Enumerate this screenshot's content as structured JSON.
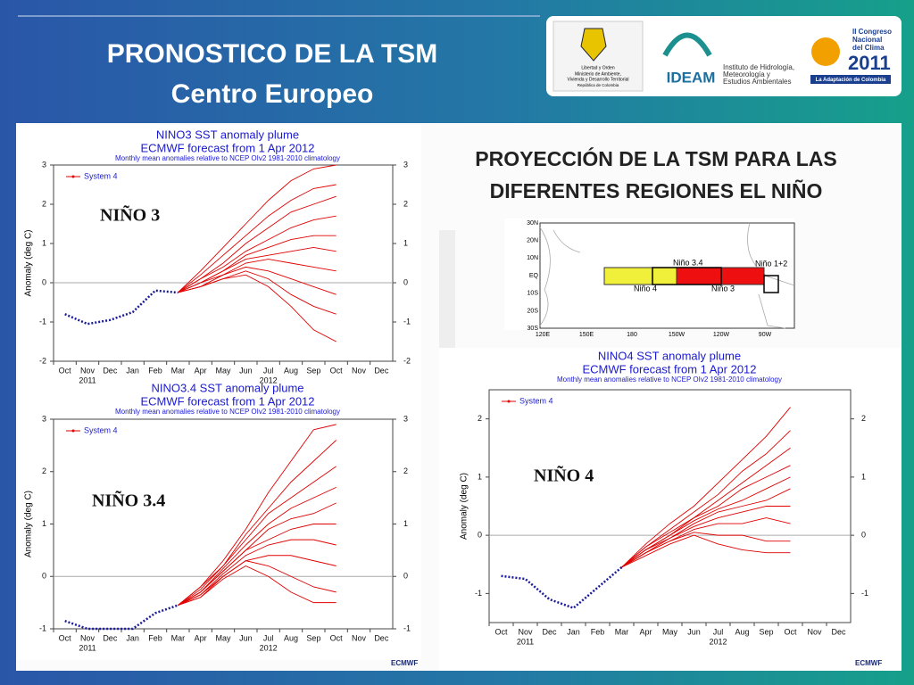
{
  "header": {
    "title": "PRONOSTICO DE LA TSM",
    "subtitle": "Centro Europeo"
  },
  "logos": {
    "motto": "Libertad y Orden",
    "ministry": [
      "Ministerio de Ambiente,",
      "Vivienda y Desarrollo Territorial"
    ],
    "country": "República de Colombia",
    "ideam": "IDEAM",
    "institute": [
      "Instituto de Hidrología,",
      "Meteorología y",
      "Estudios Ambientales"
    ],
    "congress": [
      "II Congreso",
      "Nacional",
      "del Clima",
      "2011"
    ],
    "congress_tag": "La Adaptación de Colombia",
    "ecmwf": "ECMWF"
  },
  "projection": {
    "lines": [
      "PROYECCIÓN DE LA TSM PARA LAS",
      "DIFERENTES REGIONES EL NIÑO"
    ]
  },
  "map": {
    "lat_labels": [
      "30N",
      "20N",
      "10N",
      "EQ",
      "10S",
      "20S",
      "30S"
    ],
    "lon_labels": [
      "120E",
      "150E",
      "180",
      "150W",
      "120W",
      "90W"
    ],
    "regions": [
      "Niño 3.4",
      "Niño 4",
      "Niño 3",
      "Niño 1+2"
    ]
  },
  "chart_data": [
    {
      "type": "line",
      "title": "NINO3 SST anomaly plume",
      "subtitle": "ECMWF forecast from 1 Apr 2012",
      "note": "Monthly mean anomalies relative to NCEP OIv2 1981-2010 climatology",
      "ylabel": "Anomaly (deg C)",
      "region_label": "NIÑO 3",
      "categories": [
        "Oct",
        "Nov",
        "Dec",
        "Jan",
        "Feb",
        "Mar",
        "Apr",
        "May",
        "Jun",
        "Jul",
        "Aug",
        "Sep",
        "Oct",
        "Nov",
        "Dec"
      ],
      "year_labels": [
        "2011",
        "2012"
      ],
      "ylim": [
        -2,
        3
      ],
      "yticks": [
        -2,
        -1,
        0,
        1,
        2,
        3
      ],
      "observed": {
        "color": "#1a1a9a",
        "values": [
          -0.8,
          -1.05,
          -0.95,
          -0.75,
          -0.2,
          -0.25,
          null,
          null,
          null,
          null,
          null,
          null,
          null,
          null,
          null
        ]
      },
      "forecast": {
        "name": "System 4",
        "color": "#e00000",
        "members": [
          [
            null,
            null,
            null,
            null,
            null,
            -0.25,
            0.3,
            0.9,
            1.5,
            2.1,
            2.6,
            2.9,
            3.0,
            null,
            null
          ],
          [
            null,
            null,
            null,
            null,
            null,
            -0.25,
            0.2,
            0.7,
            1.2,
            1.7,
            2.1,
            2.4,
            2.5,
            null,
            null
          ],
          [
            null,
            null,
            null,
            null,
            null,
            -0.25,
            0.1,
            0.5,
            1.0,
            1.4,
            1.8,
            2.0,
            2.2,
            null,
            null
          ],
          [
            null,
            null,
            null,
            null,
            null,
            -0.25,
            0.1,
            0.4,
            0.8,
            1.1,
            1.4,
            1.6,
            1.7,
            null,
            null
          ],
          [
            null,
            null,
            null,
            null,
            null,
            -0.25,
            0.0,
            0.3,
            0.7,
            0.9,
            1.1,
            1.2,
            1.2,
            null,
            null
          ],
          [
            null,
            null,
            null,
            null,
            null,
            -0.25,
            0.0,
            0.3,
            0.6,
            0.7,
            0.8,
            0.9,
            0.8,
            null,
            null
          ],
          [
            null,
            null,
            null,
            null,
            null,
            -0.25,
            -0.1,
            0.2,
            0.5,
            0.6,
            0.5,
            0.4,
            0.3,
            null,
            null
          ],
          [
            null,
            null,
            null,
            null,
            null,
            -0.25,
            0.0,
            0.2,
            0.4,
            0.3,
            0.1,
            -0.1,
            -0.3,
            null,
            null
          ],
          [
            null,
            null,
            null,
            null,
            null,
            -0.25,
            -0.1,
            0.1,
            0.3,
            0.1,
            -0.3,
            -0.6,
            -0.8,
            null,
            null
          ],
          [
            null,
            null,
            null,
            null,
            null,
            -0.25,
            -0.1,
            0.1,
            0.2,
            -0.1,
            -0.6,
            -1.2,
            -1.5,
            null,
            null
          ]
        ]
      }
    },
    {
      "type": "line",
      "title": "NINO3.4 SST anomaly plume",
      "subtitle": "ECMWF forecast from 1 Apr 2012",
      "note": "Monthly mean anomalies relative to NCEP OIv2 1981-2010 climatology",
      "ylabel": "Anomaly (deg C)",
      "region_label": "NIÑO 3.4",
      "categories": [
        "Oct",
        "Nov",
        "Dec",
        "Jan",
        "Feb",
        "Mar",
        "Apr",
        "May",
        "Jun",
        "Jul",
        "Aug",
        "Sep",
        "Oct",
        "Nov",
        "Dec"
      ],
      "year_labels": [
        "2011",
        "2012"
      ],
      "ylim": [
        -1,
        3
      ],
      "yticks": [
        -1,
        0,
        1,
        2,
        3
      ],
      "observed": {
        "color": "#1a1a9a",
        "values": [
          -0.85,
          -1.0,
          -1.0,
          -1.0,
          -0.7,
          -0.55,
          null,
          null,
          null,
          null,
          null,
          null,
          null,
          null,
          null
        ]
      },
      "forecast": {
        "name": "System 4",
        "color": "#e00000",
        "members": [
          [
            null,
            null,
            null,
            null,
            null,
            -0.55,
            -0.2,
            0.3,
            0.9,
            1.6,
            2.2,
            2.8,
            2.9,
            null,
            null
          ],
          [
            null,
            null,
            null,
            null,
            null,
            -0.55,
            -0.2,
            0.2,
            0.8,
            1.3,
            1.8,
            2.2,
            2.6,
            null,
            null
          ],
          [
            null,
            null,
            null,
            null,
            null,
            -0.55,
            -0.25,
            0.2,
            0.7,
            1.2,
            1.5,
            1.8,
            2.1,
            null,
            null
          ],
          [
            null,
            null,
            null,
            null,
            null,
            -0.55,
            -0.3,
            0.15,
            0.6,
            1.0,
            1.3,
            1.5,
            1.7,
            null,
            null
          ],
          [
            null,
            null,
            null,
            null,
            null,
            -0.55,
            -0.3,
            0.1,
            0.5,
            0.9,
            1.1,
            1.2,
            1.4,
            null,
            null
          ],
          [
            null,
            null,
            null,
            null,
            null,
            -0.55,
            -0.3,
            0.1,
            0.5,
            0.7,
            0.9,
            1.0,
            1.0,
            null,
            null
          ],
          [
            null,
            null,
            null,
            null,
            null,
            -0.55,
            -0.35,
            0.05,
            0.4,
            0.6,
            0.7,
            0.7,
            0.6,
            null,
            null
          ],
          [
            null,
            null,
            null,
            null,
            null,
            -0.55,
            -0.35,
            0.0,
            0.3,
            0.4,
            0.4,
            0.3,
            0.2,
            null,
            null
          ],
          [
            null,
            null,
            null,
            null,
            null,
            -0.55,
            -0.4,
            0.0,
            0.3,
            0.2,
            0.0,
            -0.2,
            -0.3,
            null,
            null
          ],
          [
            null,
            null,
            null,
            null,
            null,
            -0.55,
            -0.4,
            -0.05,
            0.2,
            0.0,
            -0.3,
            -0.5,
            -0.5,
            null,
            null
          ]
        ]
      }
    },
    {
      "type": "line",
      "title": "NINO4 SST anomaly plume",
      "subtitle": "ECMWF forecast from 1 Apr 2012",
      "note": "Monthly mean anomalies relative to NCEP OIv2 1981-2010 climatology",
      "ylabel": "Anomaly (deg C)",
      "region_label": "NIÑO 4",
      "categories": [
        "Oct",
        "Nov",
        "Dec",
        "Jan",
        "Feb",
        "Mar",
        "Apr",
        "May",
        "Jun",
        "Jul",
        "Aug",
        "Sep",
        "Oct",
        "Nov",
        "Dec"
      ],
      "year_labels": [
        "2011",
        "2012"
      ],
      "ylim": [
        -1.5,
        2.5
      ],
      "yticks": [
        -1,
        0,
        1,
        2
      ],
      "observed": {
        "color": "#1a1a9a",
        "values": [
          -0.7,
          -0.75,
          -1.1,
          -1.25,
          -0.9,
          -0.55,
          null,
          null,
          null,
          null,
          null,
          null,
          null,
          null,
          null
        ]
      },
      "forecast": {
        "name": "System 4",
        "color": "#e00000",
        "members": [
          [
            null,
            null,
            null,
            null,
            null,
            -0.55,
            -0.15,
            0.2,
            0.5,
            0.9,
            1.3,
            1.7,
            2.2,
            null,
            null
          ],
          [
            null,
            null,
            null,
            null,
            null,
            -0.55,
            -0.2,
            0.1,
            0.4,
            0.7,
            1.1,
            1.4,
            1.8,
            null,
            null
          ],
          [
            null,
            null,
            null,
            null,
            null,
            -0.55,
            -0.2,
            0.05,
            0.3,
            0.6,
            0.9,
            1.2,
            1.5,
            null,
            null
          ],
          [
            null,
            null,
            null,
            null,
            null,
            -0.55,
            -0.25,
            0.0,
            0.3,
            0.5,
            0.8,
            1.0,
            1.2,
            null,
            null
          ],
          [
            null,
            null,
            null,
            null,
            null,
            -0.55,
            -0.25,
            0.0,
            0.25,
            0.45,
            0.6,
            0.8,
            1.0,
            null,
            null
          ],
          [
            null,
            null,
            null,
            null,
            null,
            -0.55,
            -0.25,
            -0.05,
            0.2,
            0.4,
            0.5,
            0.6,
            0.8,
            null,
            null
          ],
          [
            null,
            null,
            null,
            null,
            null,
            -0.55,
            -0.3,
            -0.05,
            0.15,
            0.3,
            0.4,
            0.5,
            0.5,
            null,
            null
          ],
          [
            null,
            null,
            null,
            null,
            null,
            -0.55,
            -0.3,
            -0.1,
            0.1,
            0.2,
            0.2,
            0.3,
            0.2,
            null,
            null
          ],
          [
            null,
            null,
            null,
            null,
            null,
            -0.55,
            -0.3,
            -0.1,
            0.05,
            0.0,
            0.0,
            -0.1,
            -0.1,
            null,
            null
          ],
          [
            null,
            null,
            null,
            null,
            null,
            -0.55,
            -0.35,
            -0.15,
            0.0,
            -0.15,
            -0.25,
            -0.3,
            -0.3,
            null,
            null
          ]
        ]
      }
    }
  ]
}
